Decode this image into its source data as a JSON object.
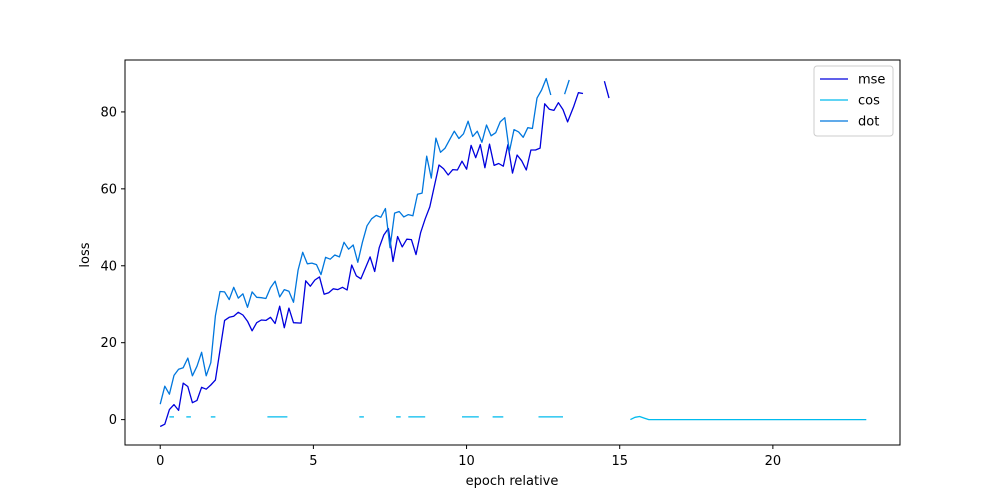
{
  "chart_data": {
    "type": "line",
    "title": "",
    "xlabel": "epoch relative",
    "ylabel": "loss",
    "xlim": [
      -1.15,
      24.15
    ],
    "ylim": [
      -6.6,
      93.5
    ],
    "xticks": [
      0,
      5,
      10,
      15,
      20
    ],
    "yticks": [
      0,
      20,
      40,
      60,
      80
    ],
    "grid": false,
    "legend_position": "top-right",
    "series": [
      {
        "name": "mse",
        "color": "#0000dd",
        "segments": [
          [
            [
              0,
              -1.8
            ],
            [
              0.15,
              -1.2
            ],
            [
              0.3,
              2.6
            ],
            [
              0.45,
              3.9
            ],
            [
              0.6,
              2.4
            ],
            [
              0.75,
              9.5
            ],
            [
              0.9,
              8.6
            ],
            [
              1.05,
              4.4
            ],
            [
              1.2,
              5.0
            ],
            [
              1.35,
              8.4
            ],
            [
              1.5,
              7.9
            ],
            [
              1.65,
              9.0
            ],
            [
              1.8,
              10.3
            ],
            [
              2.1,
              25.8
            ],
            [
              2.25,
              26.6
            ],
            [
              2.4,
              26.9
            ],
            [
              2.55,
              27.9
            ],
            [
              2.7,
              27.2
            ],
            [
              2.85,
              25.6
            ],
            [
              3.0,
              23.1
            ],
            [
              3.15,
              25.2
            ],
            [
              3.3,
              25.9
            ],
            [
              3.45,
              25.8
            ],
            [
              3.6,
              26.6
            ],
            [
              3.75,
              25.0
            ],
            [
              3.9,
              29.5
            ],
            [
              4.05,
              23.9
            ],
            [
              4.2,
              29.0
            ],
            [
              4.35,
              25.2
            ],
            [
              4.6,
              25.1
            ],
            [
              4.75,
              36.1
            ],
            [
              4.9,
              34.7
            ],
            [
              5.05,
              36.3
            ],
            [
              5.2,
              37.1
            ],
            [
              5.35,
              32.6
            ],
            [
              5.5,
              33.0
            ],
            [
              5.65,
              34.0
            ],
            [
              5.8,
              33.8
            ],
            [
              5.95,
              34.4
            ],
            [
              6.1,
              33.7
            ],
            [
              6.25,
              40.2
            ],
            [
              6.4,
              37.4
            ],
            [
              6.55,
              36.6
            ],
            [
              6.85,
              42.3
            ],
            [
              7.0,
              38.5
            ],
            [
              7.15,
              44.7
            ],
            [
              7.3,
              48.0
            ],
            [
              7.45,
              49.7
            ],
            [
              7.6,
              41.1
            ],
            [
              7.75,
              47.6
            ],
            [
              7.9,
              44.9
            ],
            [
              8.05,
              46.9
            ],
            [
              8.2,
              46.8
            ],
            [
              8.35,
              42.9
            ],
            [
              8.5,
              48.6
            ],
            [
              8.65,
              52.2
            ],
            [
              8.8,
              55.3
            ],
            [
              9.1,
              66.2
            ],
            [
              9.25,
              65.2
            ],
            [
              9.4,
              63.6
            ],
            [
              9.55,
              65.0
            ],
            [
              9.7,
              64.9
            ],
            [
              9.85,
              67.2
            ],
            [
              10.0,
              65.1
            ],
            [
              10.15,
              71.3
            ],
            [
              10.3,
              68.1
            ],
            [
              10.45,
              71.5
            ],
            [
              10.6,
              65.5
            ],
            [
              10.75,
              71.6
            ],
            [
              10.9,
              66.1
            ],
            [
              11.05,
              66.6
            ],
            [
              11.2,
              65.9
            ],
            [
              11.35,
              71.5
            ],
            [
              11.5,
              64.1
            ],
            [
              11.65,
              68.8
            ],
            [
              11.8,
              67.3
            ],
            [
              11.95,
              64.9
            ],
            [
              12.1,
              70.1
            ],
            [
              12.25,
              70.1
            ],
            [
              12.4,
              70.6
            ],
            [
              12.55,
              82.1
            ],
            [
              12.7,
              80.7
            ],
            [
              12.85,
              80.4
            ],
            [
              13.0,
              82.4
            ],
            [
              13.15,
              80.6
            ],
            [
              13.3,
              77.4
            ],
            [
              13.5,
              81.5
            ],
            [
              13.65,
              85.0
            ],
            [
              13.8,
              84.8
            ]
          ],
          [
            [
              14.5,
              88.0
            ],
            [
              14.65,
              83.6
            ]
          ]
        ]
      },
      {
        "name": "cos",
        "color": "#00bbee",
        "segments": [
          [
            [
              0.3,
              0.7
            ],
            [
              0.45,
              0.7
            ]
          ],
          [
            [
              0.85,
              0.7
            ],
            [
              1.0,
              0.7
            ]
          ],
          [
            [
              1.65,
              0.7
            ],
            [
              1.8,
              0.7
            ]
          ],
          [
            [
              3.5,
              0.7
            ],
            [
              4.15,
              0.7
            ]
          ],
          [
            [
              6.5,
              0.7
            ],
            [
              6.65,
              0.7
            ]
          ],
          [
            [
              7.7,
              0.7
            ],
            [
              7.85,
              0.7
            ]
          ],
          [
            [
              8.1,
              0.7
            ],
            [
              8.65,
              0.7
            ]
          ],
          [
            [
              9.85,
              0.7
            ],
            [
              10.4,
              0.7
            ]
          ],
          [
            [
              10.85,
              0.7
            ],
            [
              11.2,
              0.7
            ]
          ],
          [
            [
              12.35,
              0.7
            ],
            [
              13.15,
              0.7
            ]
          ],
          [
            [
              15.35,
              0.0
            ],
            [
              15.5,
              0.6
            ],
            [
              15.65,
              0.8
            ],
            [
              15.8,
              0.4
            ],
            [
              15.95,
              0.0
            ],
            [
              17.0,
              0.0
            ],
            [
              18.5,
              0.0
            ],
            [
              20.0,
              0.0
            ],
            [
              21.5,
              0.0
            ],
            [
              23.05,
              0.0
            ]
          ]
        ]
      },
      {
        "name": "dot",
        "color": "#0077dd",
        "segments": [
          [
            [
              0,
              4.0
            ],
            [
              0.15,
              8.7
            ],
            [
              0.3,
              6.6
            ],
            [
              0.45,
              11.5
            ],
            [
              0.6,
              13.1
            ],
            [
              0.75,
              13.5
            ],
            [
              0.9,
              16.0
            ],
            [
              1.05,
              11.4
            ],
            [
              1.2,
              13.9
            ],
            [
              1.35,
              17.5
            ],
            [
              1.5,
              11.4
            ],
            [
              1.65,
              14.8
            ],
            [
              1.8,
              27.0
            ],
            [
              1.95,
              33.3
            ],
            [
              2.1,
              33.2
            ],
            [
              2.25,
              31.2
            ],
            [
              2.4,
              34.4
            ],
            [
              2.55,
              31.6
            ],
            [
              2.7,
              32.7
            ],
            [
              2.85,
              29.2
            ],
            [
              3.0,
              33.2
            ],
            [
              3.15,
              31.8
            ],
            [
              3.3,
              31.7
            ],
            [
              3.45,
              31.5
            ],
            [
              3.6,
              34.3
            ],
            [
              3.75,
              36.0
            ],
            [
              3.9,
              31.9
            ],
            [
              4.05,
              33.8
            ],
            [
              4.2,
              33.4
            ],
            [
              4.35,
              30.5
            ],
            [
              4.5,
              38.9
            ],
            [
              4.65,
              43.5
            ],
            [
              4.8,
              40.5
            ],
            [
              4.95,
              40.7
            ],
            [
              5.1,
              40.3
            ],
            [
              5.25,
              37.7
            ],
            [
              5.4,
              42.2
            ],
            [
              5.55,
              41.7
            ],
            [
              5.7,
              42.8
            ],
            [
              5.85,
              42.3
            ],
            [
              6.0,
              46.1
            ],
            [
              6.15,
              44.3
            ],
            [
              6.3,
              45.4
            ],
            [
              6.45,
              40.9
            ],
            [
              6.6,
              46.1
            ],
            [
              6.75,
              50.4
            ],
            [
              6.9,
              52.2
            ],
            [
              7.05,
              53.1
            ],
            [
              7.2,
              52.6
            ],
            [
              7.35,
              54.9
            ],
            [
              7.5,
              44.7
            ],
            [
              7.65,
              53.7
            ],
            [
              7.8,
              54.1
            ],
            [
              7.95,
              52.7
            ],
            [
              8.1,
              53.3
            ],
            [
              8.25,
              53.0
            ],
            [
              8.4,
              58.6
            ],
            [
              8.55,
              58.9
            ],
            [
              8.7,
              68.5
            ],
            [
              8.85,
              62.8
            ],
            [
              9.0,
              73.2
            ],
            [
              9.15,
              69.5
            ],
            [
              9.3,
              70.6
            ],
            [
              9.45,
              72.8
            ],
            [
              9.6,
              75.0
            ],
            [
              9.75,
              73.1
            ],
            [
              9.9,
              74.3
            ],
            [
              10.05,
              77.6
            ],
            [
              10.2,
              73.6
            ],
            [
              10.35,
              75.0
            ],
            [
              10.5,
              72.1
            ],
            [
              10.65,
              76.6
            ],
            [
              10.8,
              73.8
            ],
            [
              10.95,
              74.6
            ],
            [
              11.1,
              77.4
            ],
            [
              11.25,
              78.5
            ],
            [
              11.4,
              69.7
            ],
            [
              11.55,
              75.4
            ],
            [
              11.7,
              74.8
            ],
            [
              11.85,
              73.4
            ],
            [
              12.0,
              75.9
            ],
            [
              12.15,
              75.7
            ],
            [
              12.3,
              83.6
            ],
            [
              12.45,
              85.7
            ],
            [
              12.6,
              88.7
            ],
            [
              12.75,
              84.4
            ]
          ],
          [
            [
              13.2,
              84.6
            ],
            [
              13.35,
              88.3
            ]
          ]
        ]
      }
    ]
  }
}
